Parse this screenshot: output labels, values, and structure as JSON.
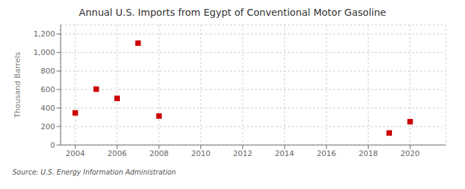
{
  "chart_data": {
    "type": "scatter",
    "title": "Annual U.S. Imports from Egypt of Conventional Motor Gasoline",
    "ylabel": "Thousand Barrels",
    "annotation": "Source: U.S. Energy Information Administration",
    "x": [
      2004,
      2005,
      2006,
      2007,
      2008,
      2019,
      2020
    ],
    "values": [
      347,
      604,
      504,
      1101,
      313,
      130,
      252
    ],
    "xlim": [
      2003.3,
      2021.7
    ],
    "xticks": [
      2004,
      2006,
      2008,
      2010,
      2012,
      2014,
      2016,
      2018,
      2020
    ],
    "ylim": [
      0,
      1300
    ],
    "yticks": [
      0,
      200,
      400,
      600,
      800,
      {
        "value": 1000,
        "label": "1,000"
      },
      {
        "value": 1200,
        "label": "1,200"
      }
    ],
    "color": "#cc0000",
    "marker": "square",
    "grid": true
  }
}
